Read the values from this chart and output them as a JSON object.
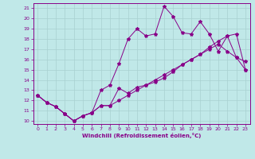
{
  "xlabel": "Windchill (Refroidissement éolien,°C)",
  "bg_color": "#c0e8e8",
  "line_color": "#880088",
  "grid_color": "#a8d0d0",
  "xlim": [
    -0.5,
    23.5
  ],
  "ylim": [
    9.7,
    21.5
  ],
  "xticks": [
    0,
    1,
    2,
    3,
    4,
    5,
    6,
    7,
    8,
    9,
    10,
    11,
    12,
    13,
    14,
    15,
    16,
    17,
    18,
    19,
    20,
    21,
    22,
    23
  ],
  "yticks": [
    10,
    11,
    12,
    13,
    14,
    15,
    16,
    17,
    18,
    19,
    20,
    21
  ],
  "line1_x": [
    0,
    1,
    2,
    3,
    4,
    5,
    6,
    7,
    8,
    9,
    10,
    11,
    12,
    13,
    14,
    15,
    16,
    17,
    18,
    19,
    20,
    21,
    22,
    23
  ],
  "line1_y": [
    12.5,
    11.8,
    11.4,
    10.7,
    10.0,
    10.5,
    10.8,
    11.5,
    11.5,
    13.2,
    12.7,
    13.3,
    13.5,
    13.8,
    14.2,
    14.8,
    15.5,
    16.0,
    16.5,
    17.2,
    17.8,
    18.3,
    18.5,
    15.0
  ],
  "line2_x": [
    0,
    1,
    2,
    3,
    4,
    5,
    6,
    7,
    8,
    9,
    10,
    11,
    12,
    13,
    14,
    15,
    16,
    17,
    18,
    19,
    20,
    21,
    22,
    23
  ],
  "line2_y": [
    12.5,
    11.8,
    11.4,
    10.7,
    10.0,
    10.5,
    10.8,
    13.0,
    13.5,
    15.6,
    18.0,
    19.0,
    18.3,
    18.5,
    21.2,
    20.2,
    18.6,
    18.5,
    19.7,
    18.5,
    16.8,
    18.3,
    16.2,
    15.8
  ],
  "line3_x": [
    0,
    1,
    2,
    3,
    4,
    5,
    6,
    7,
    8,
    9,
    10,
    11,
    12,
    13,
    14,
    15,
    16,
    17,
    18,
    19,
    20,
    21,
    22,
    23
  ],
  "line3_y": [
    12.5,
    11.8,
    11.4,
    10.7,
    10.0,
    10.5,
    10.8,
    11.5,
    11.5,
    12.0,
    12.5,
    13.0,
    13.5,
    14.0,
    14.5,
    15.0,
    15.5,
    16.0,
    16.5,
    17.0,
    17.5,
    16.8,
    16.2,
    15.0
  ]
}
